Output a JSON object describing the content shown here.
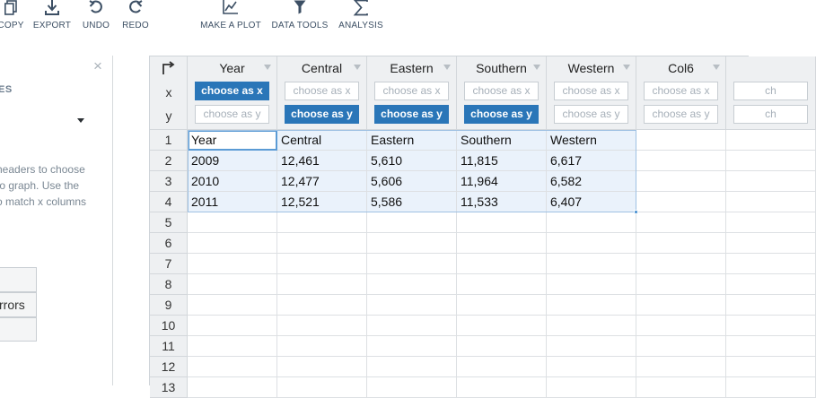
{
  "toolbar": {
    "items": [
      {
        "label": "COPY",
        "icon": "copy-icon"
      },
      {
        "label": "EXPORT",
        "icon": "export-icon"
      },
      {
        "label": "UNDO",
        "icon": "undo-icon"
      },
      {
        "label": "REDO",
        "icon": "redo-icon"
      },
      {
        "label": "MAKE A PLOT",
        "icon": "plot-icon"
      },
      {
        "label": "DATA TOOLS",
        "icon": "filter-icon"
      },
      {
        "label": "ANALYSIS",
        "icon": "sigma-icon"
      }
    ],
    "icon_color": "#3c4f64"
  },
  "left_panel": {
    "close": "×",
    "title": "ES",
    "help_lines": [
      "headers to choose",
      "to graph. Use the",
      "o match x columns"
    ],
    "boxes": [
      "",
      "rrors",
      ""
    ]
  },
  "grid": {
    "corner": {
      "x_label": "x",
      "y_label": "y"
    },
    "columns": [
      {
        "title": "Year",
        "x_label": "choose as x",
        "y_label": "choose as y",
        "x_active": true,
        "y_active": false
      },
      {
        "title": "Central",
        "x_label": "choose as x",
        "y_label": "choose as y",
        "x_active": false,
        "y_active": true
      },
      {
        "title": "Eastern",
        "x_label": "choose as x",
        "y_label": "choose as y",
        "x_active": false,
        "y_active": true
      },
      {
        "title": "Southern",
        "x_label": "choose as x",
        "y_label": "choose as y",
        "x_active": false,
        "y_active": true
      },
      {
        "title": "Western",
        "x_label": "choose as x",
        "y_label": "choose as y",
        "x_active": false,
        "y_active": false
      },
      {
        "title": "Col6",
        "x_label": "choose as x",
        "y_label": "choose as y",
        "x_active": false,
        "y_active": false
      },
      {
        "title": "",
        "x_label": "ch",
        "y_label": "ch",
        "x_active": false,
        "y_active": false
      }
    ],
    "row_numbers": [
      "1",
      "2",
      "3",
      "4",
      "5",
      "6",
      "7",
      "8",
      "9",
      "10",
      "11",
      "12",
      "13"
    ],
    "rows": [
      [
        "Year",
        "Central",
        "Eastern",
        "Southern",
        "Western",
        "",
        ""
      ],
      [
        "2009",
        "12,461",
        "5,610",
        "11,815",
        "6,617",
        "",
        ""
      ],
      [
        "2010",
        "12,477",
        "5,606",
        "11,964",
        "6,582",
        "",
        ""
      ],
      [
        "2011",
        "12,521",
        "5,586",
        "11,533",
        "6,407",
        "",
        ""
      ]
    ],
    "colors": {
      "active_button": "#2a76b8",
      "selection": "#eaf2fb",
      "selection_border": "#5b9bd5"
    }
  }
}
